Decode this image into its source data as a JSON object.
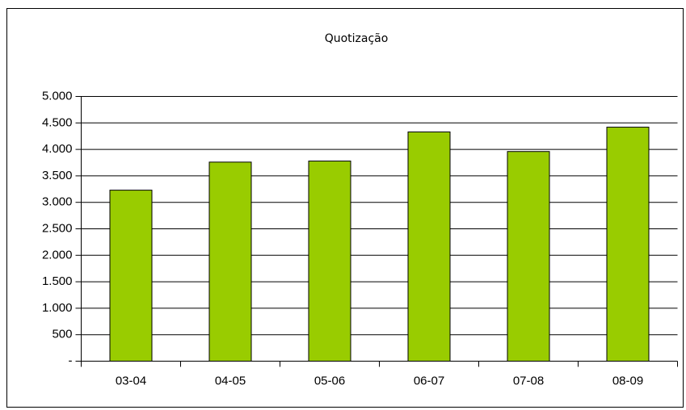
{
  "chart_data": {
    "type": "bar",
    "title": "Quotização",
    "categories": [
      "03-04",
      "04-05",
      "05-06",
      "06-07",
      "07-08",
      "08-09"
    ],
    "values": [
      3230,
      3760,
      3780,
      4330,
      3960,
      4420
    ],
    "color": "#99cc00",
    "ylim": [
      0,
      5000
    ],
    "yticks": [
      {
        "value": 0,
        "label": "-"
      },
      500,
      {
        "value": 1000,
        "label": "1.000"
      },
      {
        "value": 1500,
        "label": "1.500"
      },
      {
        "value": 2000,
        "label": "2.000"
      },
      {
        "value": 2500,
        "label": "2.500"
      },
      {
        "value": 3000,
        "label": "3.000"
      },
      {
        "value": 3500,
        "label": "3.500"
      },
      {
        "value": 4000,
        "label": "4.000"
      },
      {
        "value": 4500,
        "label": "4.500"
      },
      {
        "value": 5000,
        "label": "5.000"
      }
    ],
    "grid": true
  }
}
